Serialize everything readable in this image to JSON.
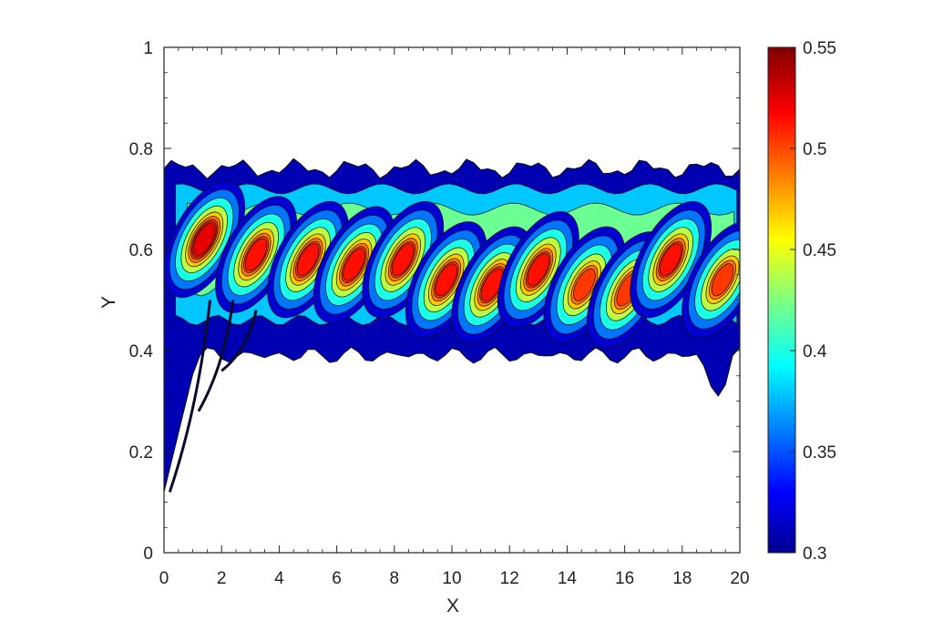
{
  "chart_data": {
    "type": "contour",
    "xlabel": "X",
    "ylabel": "Y",
    "xlim": [
      0,
      20
    ],
    "ylim": [
      0,
      1
    ],
    "x_ticks": [
      "0",
      "2",
      "4",
      "6",
      "8",
      "10",
      "12",
      "14",
      "16",
      "18",
      "20"
    ],
    "y_ticks": [
      "0",
      "0.2",
      "0.4",
      "0.6",
      "0.8",
      "1"
    ],
    "colorbar": {
      "min": 0.3,
      "max": 0.55,
      "ticks": [
        "0.3",
        "0.35",
        "0.4",
        "0.45",
        "0.5",
        "0.55"
      ],
      "colormap": "jet"
    },
    "band": {
      "center_y": 0.58,
      "upper_edge_y": 0.76,
      "lower_edge_y": 0.4,
      "tail_bottom_y": 0.12,
      "tail_x": 0.2
    },
    "peaks": [
      {
        "x": 1.4,
        "y": 0.62,
        "value": 0.53
      },
      {
        "x": 3.2,
        "y": 0.59,
        "value": 0.52
      },
      {
        "x": 5.0,
        "y": 0.58,
        "value": 0.52
      },
      {
        "x": 6.6,
        "y": 0.57,
        "value": 0.52
      },
      {
        "x": 8.3,
        "y": 0.58,
        "value": 0.52
      },
      {
        "x": 9.8,
        "y": 0.54,
        "value": 0.52
      },
      {
        "x": 11.4,
        "y": 0.53,
        "value": 0.52
      },
      {
        "x": 13.0,
        "y": 0.56,
        "value": 0.52
      },
      {
        "x": 14.6,
        "y": 0.53,
        "value": 0.51
      },
      {
        "x": 16.1,
        "y": 0.52,
        "value": 0.51
      },
      {
        "x": 17.6,
        "y": 0.58,
        "value": 0.52
      },
      {
        "x": 19.4,
        "y": 0.54,
        "value": 0.51
      }
    ]
  }
}
